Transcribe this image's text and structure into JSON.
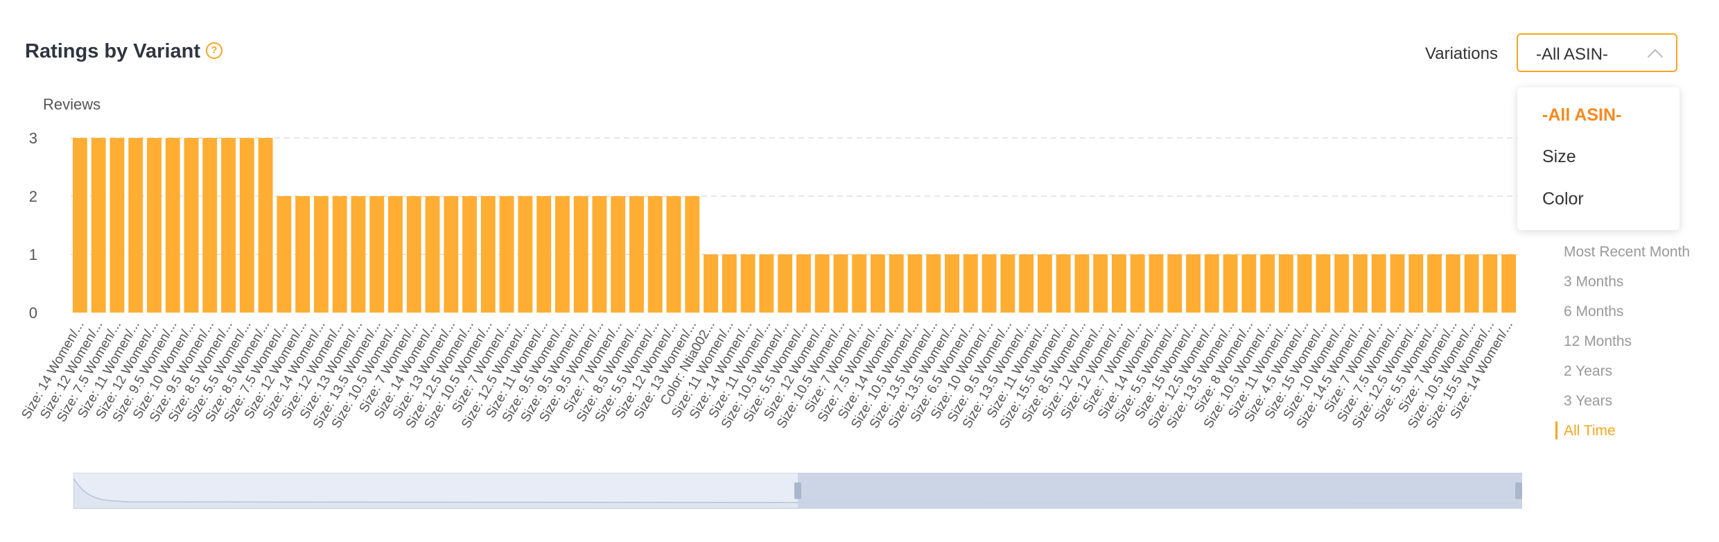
{
  "header": {
    "title": "Ratings by Variant",
    "help_icon": "question-circle-icon",
    "variations_label": "Variations",
    "select_value": "-All ASIN-"
  },
  "dropdown": {
    "options": [
      "-All ASIN-",
      "Size",
      "Color"
    ],
    "selected": "-All ASIN-"
  },
  "time_ranges": {
    "items": [
      "Most Recent Month",
      "3 Months",
      "6 Months",
      "12 Months",
      "2 Years",
      "3 Years",
      "All Time"
    ],
    "selected": "All Time"
  },
  "colors": {
    "bar": "#ffae33",
    "accent": "#f5a623",
    "grid": "#e6e6e6",
    "slider_fill": "#c9d3e3",
    "slider_bg": "#e8ecf6"
  },
  "chart_data": {
    "type": "bar",
    "ylabel": "Reviews",
    "ylim": [
      0,
      3
    ],
    "yticks": [
      0,
      1,
      2,
      3
    ],
    "grid": "horizontal-dashed",
    "categories": [
      "Size: 14 Women/...",
      "Size: 12 Women/...",
      "Size: 7.5 Women/...",
      "Size: 11 Women/...",
      "Size: 12 Women/...",
      "Size: 9.5 Women/...",
      "Size: 10 Women/...",
      "Size: 9.5 Women/...",
      "Size: 8.5 Women/...",
      "Size: 5.5 Women/...",
      "Size: 8.5 Women/...",
      "Size: 7.5 Women/...",
      "Size: 12 Women/...",
      "Size: 14 Women/...",
      "Size: 12 Women/...",
      "Size: 13 Women/...",
      "Size: 13.5 Women/...",
      "Size: 10.5 Women/...",
      "Size: 7 Women/...",
      "Size: 14 Women/...",
      "Size: 13 Women/...",
      "Size: 12.5 Women/...",
      "Size: 10.5 Women/...",
      "Size: 7 Women/...",
      "Size: 12.5 Women/...",
      "Size: 11 Women/...",
      "Size: 9.5 Women/...",
      "Size: 9.5 Women/...",
      "Size: 9.5 Women/...",
      "Size: 7 Women/...",
      "Size: 8.5 Women/...",
      "Size: 5.5 Women/...",
      "Size: 12 Women/...",
      "Size: 13 Women/...",
      "Color: Ntia002...",
      "Size: 11 Women/...",
      "Size: 14 Women/...",
      "Size: 11 Women/...",
      "Size: 10.5 Women/...",
      "Size: 5.5 Women/...",
      "Size: 12 Women/...",
      "Size: 10.5 Women/...",
      "Size: 7 Women/...",
      "Size: 7.5 Women/...",
      "Size: 14 Women/...",
      "Size: 10.5 Women/...",
      "Size: 13.5 Women/...",
      "Size: 13.5 Women/...",
      "Size: 6.5 Women/...",
      "Size: 10 Women/...",
      "Size: 9.5 Women/...",
      "Size: 13.5 Women/...",
      "Size: 11 Women/...",
      "Size: 15.5 Women/...",
      "Size: 8.5 Women/...",
      "Size: 12 Women/...",
      "Size: 12 Women/...",
      "Size: 7 Women/...",
      "Size: 14 Women/...",
      "Size: 5.5 Women/...",
      "Size: 15 Women/...",
      "Size: 12.5 Women/...",
      "Size: 13.5 Women/...",
      "Size: 8 Women/...",
      "Size: 10.5 Women/...",
      "Size: 11 Women/...",
      "Size: 4.5 Women/...",
      "Size: 15 Women/...",
      "Size: 10 Women/...",
      "Size: 14.5 Women/...",
      "Size: 7 Women/...",
      "Size: 7.5 Women/...",
      "Size: 12.5 Women/...",
      "Size: 5.5 Women/...",
      "Size: 7 Women/...",
      "Size: 10.5 Women/...",
      "Size: 15.5 Women/...",
      "Size: 14 Women/..."
    ],
    "values": [
      3,
      3,
      3,
      3,
      3,
      3,
      3,
      3,
      3,
      3,
      3,
      2,
      2,
      2,
      2,
      2,
      2,
      2,
      2,
      2,
      2,
      2,
      2,
      2,
      2,
      2,
      2,
      2,
      2,
      2,
      2,
      2,
      2,
      2,
      1,
      1,
      1,
      1,
      1,
      1,
      1,
      1,
      1,
      1,
      1,
      1,
      1,
      1,
      1,
      1,
      1,
      1,
      1,
      1,
      1,
      1,
      1,
      1,
      1,
      1,
      1,
      1,
      1,
      1,
      1,
      1,
      1,
      1,
      1,
      1,
      1,
      1,
      1,
      1,
      1,
      1,
      1,
      1
    ]
  },
  "zoom": {
    "start_fraction": 0.5,
    "end_fraction": 1.0
  }
}
